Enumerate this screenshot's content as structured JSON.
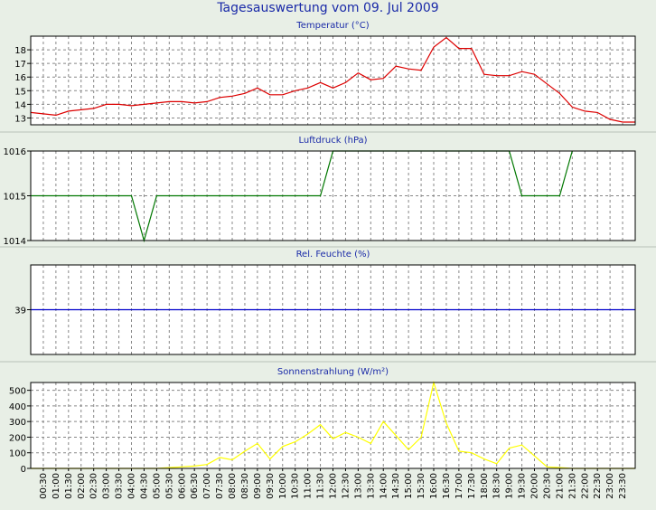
{
  "title": "Tagesauswertung vom 09. Jul 2009",
  "x_ticks": [
    "00:30",
    "01:00",
    "01:30",
    "02:00",
    "02:30",
    "03:00",
    "03:30",
    "04:00",
    "04:30",
    "05:00",
    "05:30",
    "06:00",
    "06:30",
    "07:00",
    "07:30",
    "08:00",
    "08:30",
    "09:00",
    "09:30",
    "10:00",
    "10:30",
    "11:00",
    "11:30",
    "12:00",
    "12:30",
    "13:00",
    "13:30",
    "14:00",
    "14:30",
    "15:00",
    "15:30",
    "16:00",
    "16:30",
    "17:00",
    "17:30",
    "18:00",
    "18:30",
    "19:00",
    "19:30",
    "20:00",
    "20:30",
    "21:00",
    "21:30",
    "22:00",
    "22:30",
    "23:00",
    "23:30"
  ],
  "colors": {
    "temperature": "#dd0000",
    "pressure": "#007700",
    "humidity": "#0000cc",
    "solar": "#ffff00",
    "title": "#1a2aa8"
  },
  "chart_data": [
    {
      "type": "line",
      "title": "Temperatur (°C)",
      "ylim": [
        12.5,
        19.0
      ],
      "yticks": [
        13,
        14,
        15,
        16,
        17,
        18
      ],
      "x": [
        "00:00",
        "00:30",
        "01:00",
        "01:30",
        "02:00",
        "02:30",
        "03:00",
        "03:30",
        "04:00",
        "04:30",
        "05:00",
        "05:30",
        "06:00",
        "06:30",
        "07:00",
        "07:30",
        "08:00",
        "08:30",
        "09:00",
        "09:30",
        "10:00",
        "10:30",
        "11:00",
        "11:30",
        "12:00",
        "12:30",
        "13:00",
        "13:30",
        "14:00",
        "14:30",
        "15:00",
        "15:30",
        "16:00",
        "16:30",
        "17:00",
        "17:30",
        "18:00",
        "18:30",
        "19:00",
        "19:30",
        "20:00",
        "20:30",
        "21:00",
        "21:30",
        "22:00",
        "22:30",
        "23:00",
        "23:30",
        "23:59"
      ],
      "series": [
        {
          "values": [
            13.4,
            13.3,
            13.2,
            13.5,
            13.6,
            13.7,
            14.0,
            14.0,
            13.9,
            14.0,
            14.1,
            14.2,
            14.2,
            14.1,
            14.2,
            14.5,
            14.6,
            14.8,
            15.2,
            14.7,
            14.7,
            15.0,
            15.2,
            15.6,
            15.2,
            15.6,
            16.3,
            15.8,
            15.9,
            16.8,
            16.6,
            16.5,
            18.2,
            18.9,
            18.1,
            18.1,
            16.2,
            16.1,
            16.1,
            16.4,
            16.2,
            15.5,
            14.8,
            13.8,
            13.5,
            13.4,
            12.9,
            12.7,
            12.7
          ]
        }
      ]
    },
    {
      "type": "line",
      "title": "Luftdruck (hPa)",
      "ylim": [
        1014,
        1016
      ],
      "yticks": [
        1014,
        1015,
        1016
      ],
      "x": [
        "00:00",
        "04:00",
        "04:30",
        "05:00",
        "11:30",
        "12:00",
        "19:00",
        "19:30",
        "21:00",
        "21:30"
      ],
      "series": [
        {
          "values": [
            1015,
            1015,
            1014,
            1015,
            1015,
            1016,
            1016,
            1015,
            1015,
            1016
          ]
        }
      ]
    },
    {
      "type": "line",
      "title": "Rel. Feuchte (%)",
      "ylim": [
        37,
        41
      ],
      "yticks": [
        39
      ],
      "x": [
        "00:00",
        "23:59"
      ],
      "series": [
        {
          "values": [
            39,
            39
          ]
        }
      ]
    },
    {
      "type": "line",
      "title": "Sonnenstrahlung (W/m²)",
      "ylim": [
        0,
        550
      ],
      "yticks": [
        0,
        100,
        200,
        300,
        400,
        500
      ],
      "x": [
        "00:00",
        "05:00",
        "05:30",
        "06:00",
        "06:30",
        "07:00",
        "07:30",
        "08:00",
        "08:30",
        "09:00",
        "09:30",
        "10:00",
        "10:30",
        "11:00",
        "11:30",
        "12:00",
        "12:30",
        "13:00",
        "13:30",
        "14:00",
        "14:30",
        "15:00",
        "15:30",
        "16:00",
        "16:30",
        "17:00",
        "17:30",
        "18:00",
        "18:30",
        "19:00",
        "19:30",
        "20:00",
        "20:30",
        "21:00",
        "21:30",
        "23:59"
      ],
      "series": [
        {
          "values": [
            0,
            0,
            5,
            10,
            15,
            25,
            70,
            55,
            110,
            160,
            60,
            140,
            170,
            220,
            280,
            190,
            230,
            200,
            160,
            300,
            210,
            120,
            200,
            550,
            290,
            110,
            100,
            60,
            30,
            130,
            150,
            80,
            10,
            5,
            0,
            0
          ]
        }
      ]
    }
  ]
}
